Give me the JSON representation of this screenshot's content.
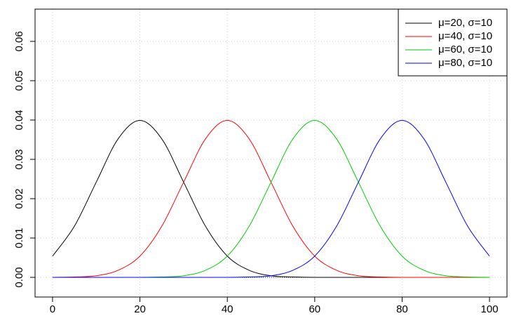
{
  "chart_data": {
    "type": "line",
    "x": [
      0,
      5,
      10,
      15,
      20,
      25,
      30,
      35,
      40,
      45,
      50,
      55,
      60,
      65,
      70,
      75,
      80,
      85,
      90,
      95,
      100
    ],
    "series": [
      {
        "name": "μ=20, σ=10",
        "color": "#000000",
        "values": [
          0.0054,
          0.013,
          0.0242,
          0.0352,
          0.0399,
          0.0352,
          0.0242,
          0.013,
          0.0054,
          0.0018,
          0.0004,
          0.0001,
          0,
          0,
          0,
          0,
          0,
          0,
          0,
          0,
          0
        ]
      },
      {
        "name": "μ=40, σ=10",
        "color": "#ff0000",
        "values": [
          0,
          0.0001,
          0.0004,
          0.0018,
          0.0054,
          0.013,
          0.0242,
          0.0352,
          0.0399,
          0.0352,
          0.0242,
          0.013,
          0.0054,
          0.0018,
          0.0004,
          0.0001,
          0,
          0,
          0,
          0,
          0
        ]
      },
      {
        "name": "μ=60, σ=10",
        "color": "#00cd00",
        "values": [
          0,
          0,
          0,
          0,
          0,
          0.0001,
          0.0004,
          0.0018,
          0.0054,
          0.013,
          0.0242,
          0.0352,
          0.0399,
          0.0352,
          0.0242,
          0.013,
          0.0054,
          0.0018,
          0.0004,
          0.0001,
          0
        ]
      },
      {
        "name": "μ=80, σ=10",
        "color": "#0000ff",
        "values": [
          0,
          0,
          0,
          0,
          0,
          0,
          0,
          0,
          0,
          0.0001,
          0.0004,
          0.0018,
          0.0054,
          0.013,
          0.0242,
          0.0352,
          0.0399,
          0.0352,
          0.0242,
          0.013,
          0.0054
        ]
      }
    ],
    "xlim": [
      -4,
      104
    ],
    "ylim": [
      -0.005,
      0.0682
    ],
    "xticks": [
      0,
      20,
      40,
      60,
      80,
      100
    ],
    "yticks": [
      {
        "value": 0,
        "label": "0.00"
      },
      {
        "value": 0.01,
        "label": "0.01"
      },
      {
        "value": 0.02,
        "label": "0.02"
      },
      {
        "value": 0.03,
        "label": "0.03"
      },
      {
        "value": 0.04,
        "label": "0.04"
      },
      {
        "value": 0.05,
        "label": "0.05"
      },
      {
        "value": 0.06,
        "label": "0.06"
      }
    ],
    "reference_line": 0,
    "grid": true,
    "legend": "top-right"
  }
}
